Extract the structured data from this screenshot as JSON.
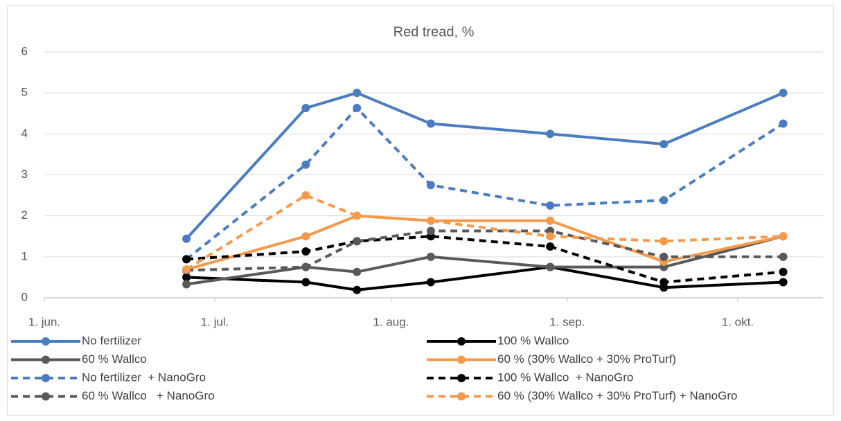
{
  "chart_data": {
    "type": "line",
    "title": "Red tread, %",
    "x": [
      177,
      198,
      207,
      220,
      241,
      261,
      282
    ],
    "xlim": [
      152,
      289
    ],
    "xticks": [
      {
        "value": 152,
        "label": "1. jun."
      },
      {
        "value": 182,
        "label": "1. jul."
      },
      {
        "value": 213,
        "label": "1. aug."
      },
      {
        "value": 244,
        "label": "1. sep."
      },
      {
        "value": 274,
        "label": "1. okt."
      }
    ],
    "ylim": [
      0,
      6
    ],
    "yticks": [
      0,
      1,
      2,
      3,
      4,
      5,
      6
    ],
    "grid": true,
    "legend": "bottom",
    "series": [
      {
        "name": "No fertilizer",
        "color": "#4a7cc0",
        "dashed": false,
        "values": [
          1.44,
          4.63,
          5,
          4.25,
          4,
          3.75,
          5
        ]
      },
      {
        "name": "100 % Wallco",
        "color": "#000000",
        "dashed": false,
        "values": [
          0.5,
          0.38,
          0.19,
          0.38,
          0.75,
          0.25,
          0.38
        ]
      },
      {
        "name": "60 % Wallco",
        "color": "#595959",
        "dashed": false,
        "values": [
          0.33,
          0.75,
          0.63,
          1,
          0.75,
          0.75,
          1.5
        ]
      },
      {
        "name": "60 % (30% Wallco + 30% ProTurf)",
        "color": "#f49a4c",
        "dashed": false,
        "values": [
          0.69,
          1.5,
          2,
          1.88,
          1.88,
          0.88,
          1.5
        ]
      },
      {
        "name": "No fertilizer  + NanoGro",
        "color": "#4a7cc0",
        "dashed": true,
        "values": [
          0.94,
          3.25,
          4.63,
          2.75,
          2.25,
          2.38,
          4.25
        ]
      },
      {
        "name": "100 % Wallco  + NanoGro",
        "color": "#000000",
        "dashed": true,
        "values": [
          0.94,
          1.13,
          1.38,
          1.5,
          1.25,
          0.38,
          0.63
        ]
      },
      {
        "name": "60 % Wallco   + NanoGro",
        "color": "#595959",
        "dashed": true,
        "values": [
          0.67,
          0.75,
          1.38,
          1.63,
          1.63,
          1,
          1
        ]
      },
      {
        "name": "60 % (30% Wallco + 30% ProTurf) + NanoGro",
        "color": "#f49a4c",
        "dashed": true,
        "values": [
          0.69,
          2.5,
          2,
          1.88,
          1.5,
          1.38,
          1.5
        ]
      }
    ]
  }
}
